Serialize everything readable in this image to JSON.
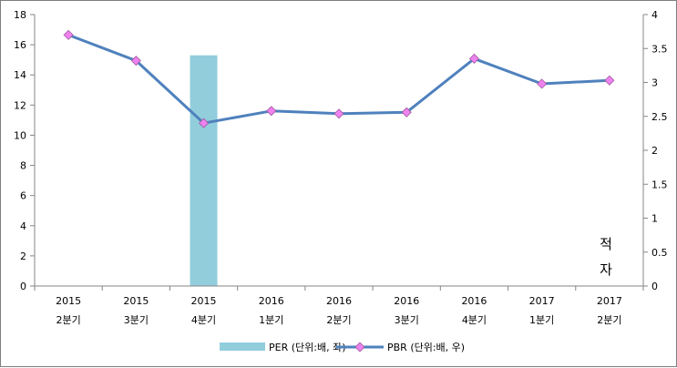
{
  "chart_data": {
    "type": "bar+line",
    "categories": [
      [
        "2015",
        "2분기"
      ],
      [
        "2015",
        "3분기"
      ],
      [
        "2015",
        "4분기"
      ],
      [
        "2016",
        "1분기"
      ],
      [
        "2016",
        "2분기"
      ],
      [
        "2016",
        "3분기"
      ],
      [
        "2016",
        "4분기"
      ],
      [
        "2017",
        "1분기"
      ],
      [
        "2017",
        "2분기"
      ]
    ],
    "series": [
      {
        "name": "PER (단위:배, 좌)",
        "type": "bar",
        "axis": "left",
        "color": "#92cddc",
        "values": [
          null,
          null,
          15.3,
          null,
          null,
          null,
          null,
          null,
          null
        ]
      },
      {
        "name": "PBR (단위:배, 우)",
        "type": "line",
        "axis": "right",
        "color": "#4f81bd",
        "marker_color": "#ee82ee",
        "values": [
          3.7,
          3.32,
          2.4,
          2.58,
          2.54,
          2.56,
          3.35,
          2.98,
          3.03
        ]
      }
    ],
    "y_left": {
      "min": 0,
      "max": 18,
      "step": 2,
      "ticks": [
        "0",
        "2",
        "4",
        "6",
        "8",
        "10",
        "12",
        "14",
        "16",
        "18"
      ]
    },
    "y_right": {
      "min": 0,
      "max": 4,
      "step": 0.5,
      "ticks": [
        "0",
        "0.5",
        "1",
        "1.5",
        "2",
        "2.5",
        "3",
        "3.5",
        "4"
      ]
    },
    "annotation": {
      "text_line1": "적",
      "text_line2": "자"
    },
    "legend_position": "bottom",
    "grid": false
  }
}
